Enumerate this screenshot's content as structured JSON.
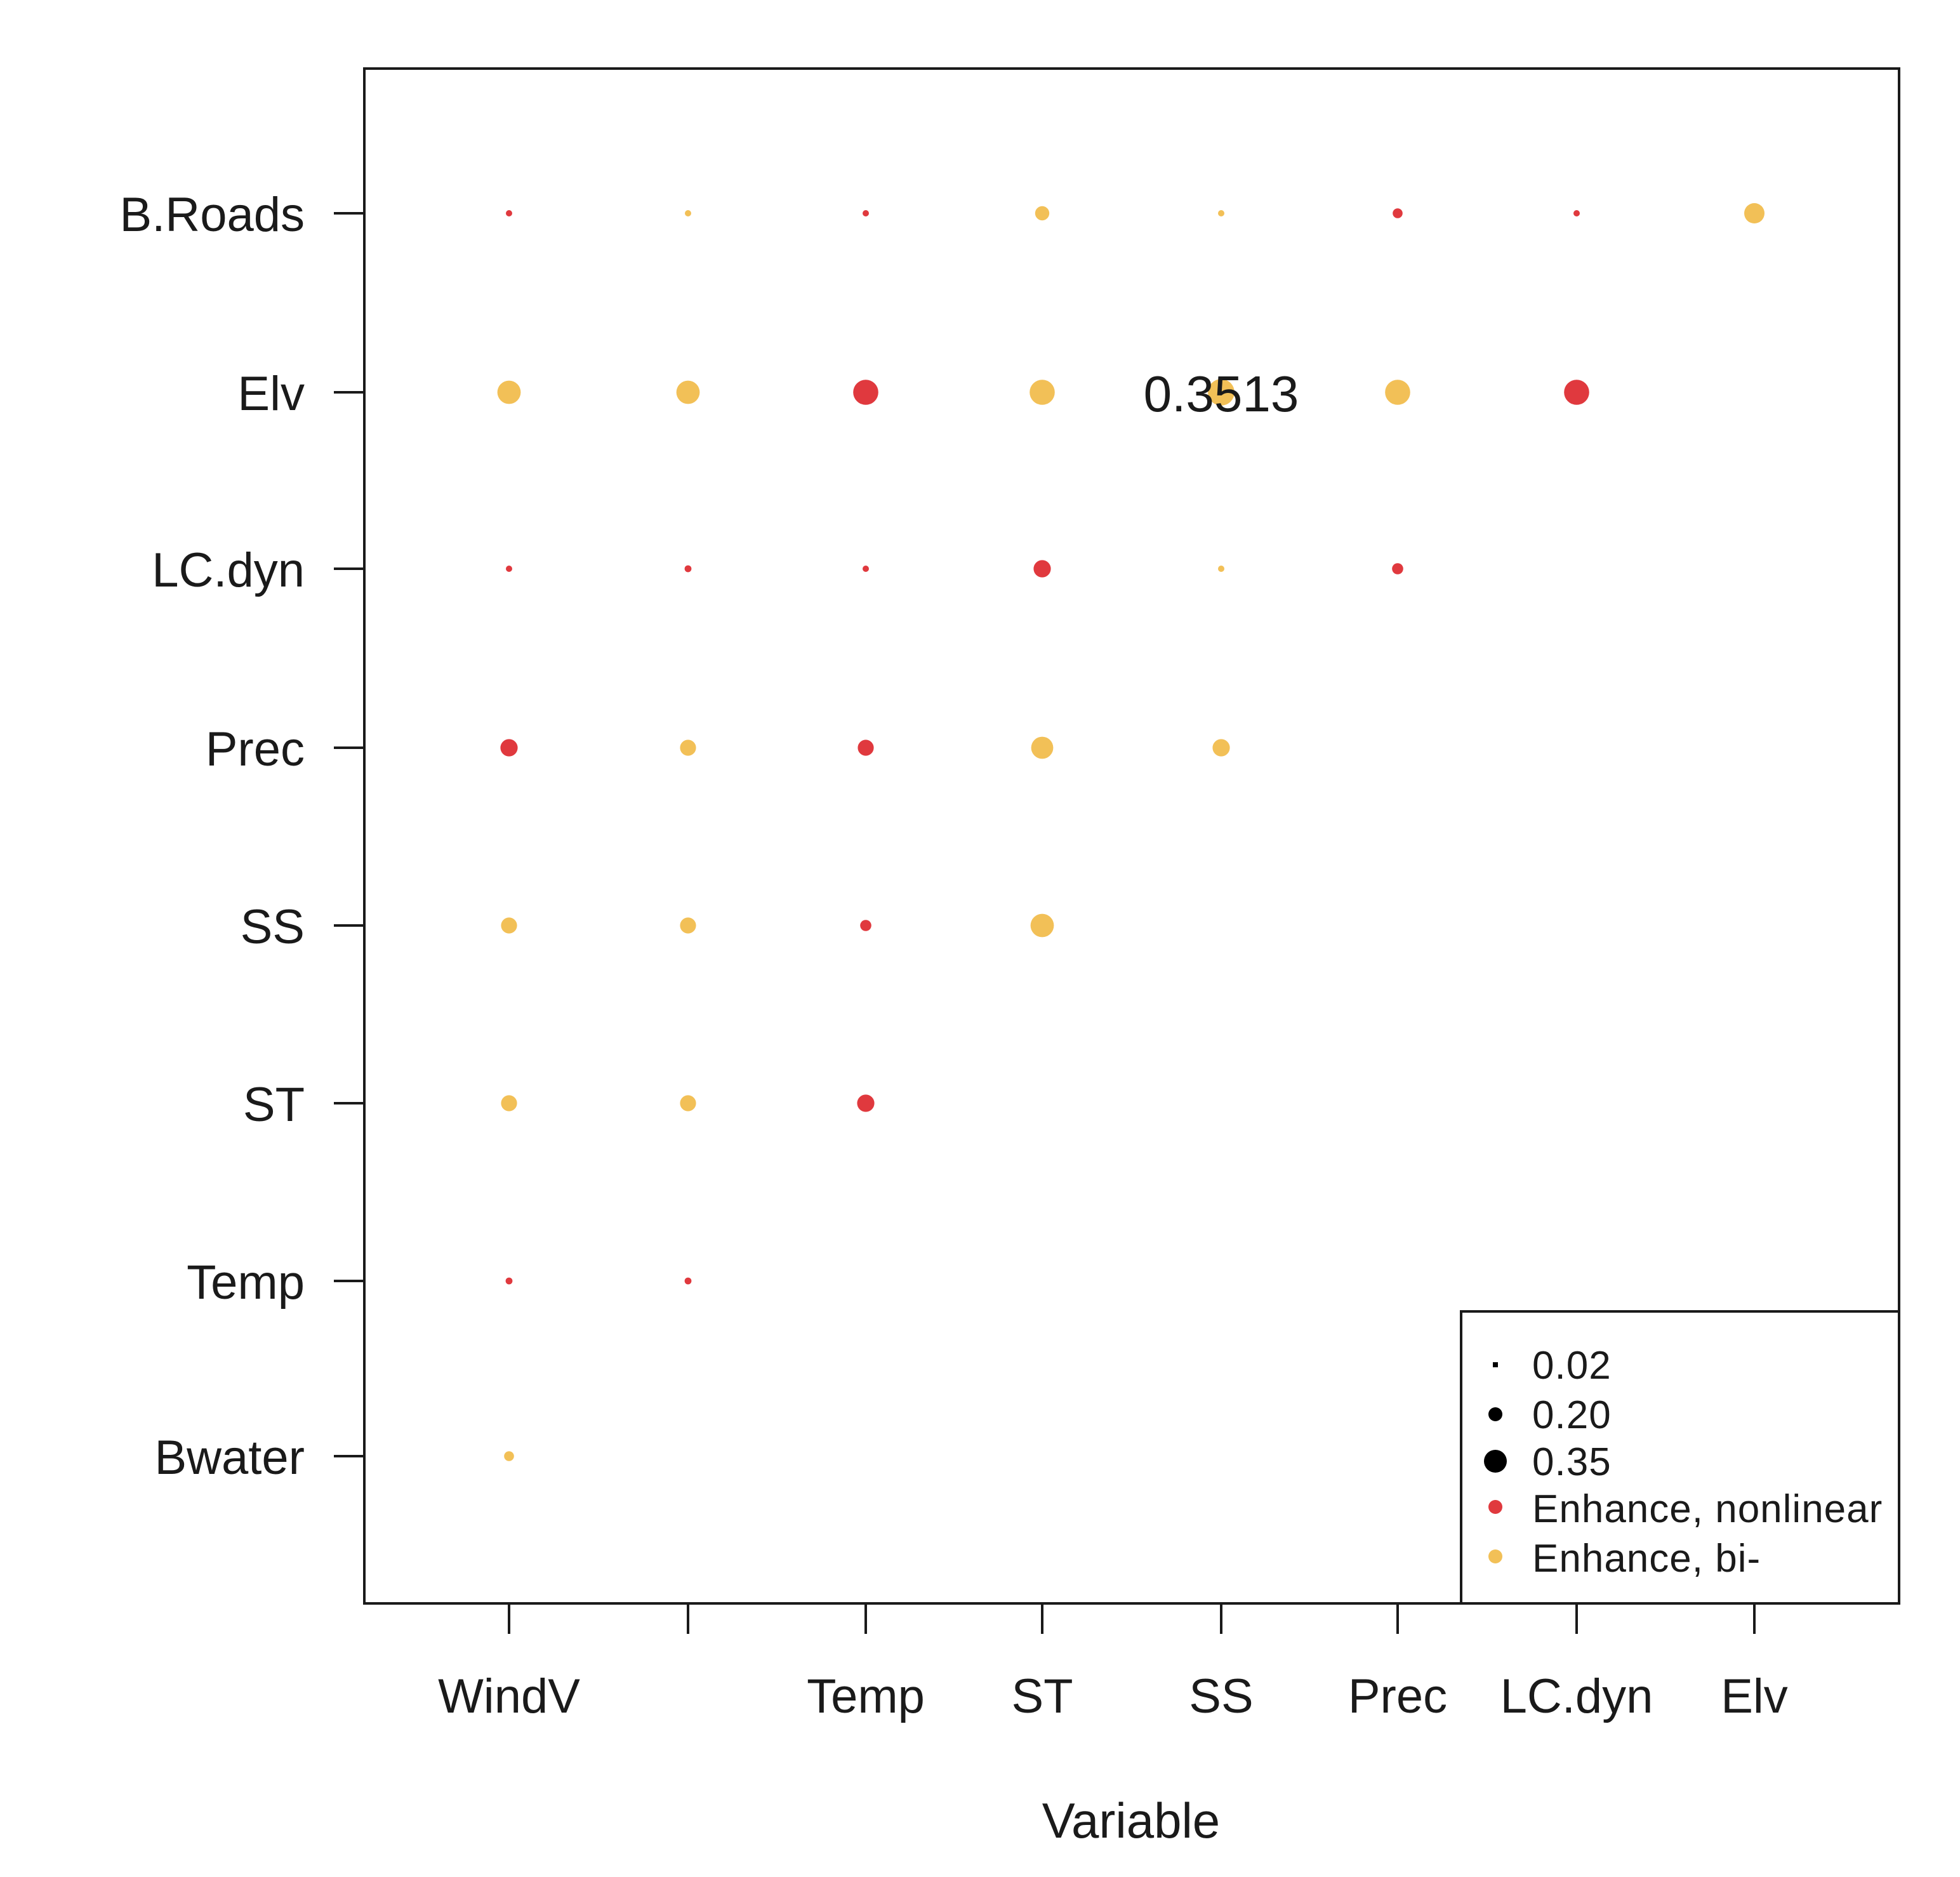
{
  "chart_data": {
    "type": "scatter",
    "title": "",
    "xlabel": "Variable",
    "ylabel": "",
    "x_categories": [
      "WindV",
      "",
      "Temp",
      "ST",
      "SS",
      "Prec",
      "LC.dyn",
      "Elv"
    ],
    "y_categories": [
      "Bwater",
      "Temp",
      "ST",
      "SS",
      "Prec",
      "LC.dyn",
      "Elv",
      "B.Roads"
    ],
    "colors": {
      "Enhance, nonlinear": "#e0393e",
      "Enhance, bi-": "#f2c057"
    },
    "points": [
      {
        "x": "WindV",
        "y": "B.Roads",
        "value": 0.02,
        "type": "Enhance, nonlinear"
      },
      {
        "x": "",
        "y": "B.Roads",
        "value": 0.02,
        "type": "Enhance, bi-"
      },
      {
        "x": "Temp",
        "y": "B.Roads",
        "value": 0.02,
        "type": "Enhance, nonlinear"
      },
      {
        "x": "ST",
        "y": "B.Roads",
        "value": 0.15,
        "type": "Enhance, bi-"
      },
      {
        "x": "SS",
        "y": "B.Roads",
        "value": 0.02,
        "type": "Enhance, bi-"
      },
      {
        "x": "Prec",
        "y": "B.Roads",
        "value": 0.08,
        "type": "Enhance, nonlinear"
      },
      {
        "x": "LC.dyn",
        "y": "B.Roads",
        "value": 0.02,
        "type": "Enhance, nonlinear"
      },
      {
        "x": "Elv",
        "y": "B.Roads",
        "value": 0.25,
        "type": "Enhance, bi-"
      },
      {
        "x": "WindV",
        "y": "Elv",
        "value": 0.3,
        "type": "Enhance, bi-"
      },
      {
        "x": "",
        "y": "Elv",
        "value": 0.3,
        "type": "Enhance, bi-"
      },
      {
        "x": "Temp",
        "y": "Elv",
        "value": 0.33,
        "type": "Enhance, nonlinear"
      },
      {
        "x": "ST",
        "y": "Elv",
        "value": 0.33,
        "type": "Enhance, bi-"
      },
      {
        "x": "SS",
        "y": "Elv",
        "value": 0.3513,
        "type": "Enhance, bi-"
      },
      {
        "x": "Prec",
        "y": "Elv",
        "value": 0.33,
        "type": "Enhance, bi-"
      },
      {
        "x": "LC.dyn",
        "y": "Elv",
        "value": 0.33,
        "type": "Enhance, nonlinear"
      },
      {
        "x": "WindV",
        "y": "LC.dyn",
        "value": 0.02,
        "type": "Enhance, nonlinear"
      },
      {
        "x": "",
        "y": "LC.dyn",
        "value": 0.03,
        "type": "Enhance, nonlinear"
      },
      {
        "x": "Temp",
        "y": "LC.dyn",
        "value": 0.02,
        "type": "Enhance, nonlinear"
      },
      {
        "x": "ST",
        "y": "LC.dyn",
        "value": 0.2,
        "type": "Enhance, nonlinear"
      },
      {
        "x": "SS",
        "y": "LC.dyn",
        "value": 0.02,
        "type": "Enhance, bi-"
      },
      {
        "x": "Prec",
        "y": "LC.dyn",
        "value": 0.1,
        "type": "Enhance, nonlinear"
      },
      {
        "x": "WindV",
        "y": "Prec",
        "value": 0.2,
        "type": "Enhance, nonlinear"
      },
      {
        "x": "",
        "y": "Prec",
        "value": 0.18,
        "type": "Enhance, bi-"
      },
      {
        "x": "Temp",
        "y": "Prec",
        "value": 0.18,
        "type": "Enhance, nonlinear"
      },
      {
        "x": "ST",
        "y": "Prec",
        "value": 0.28,
        "type": "Enhance, bi-"
      },
      {
        "x": "SS",
        "y": "Prec",
        "value": 0.2,
        "type": "Enhance, bi-"
      },
      {
        "x": "WindV",
        "y": "SS",
        "value": 0.18,
        "type": "Enhance, bi-"
      },
      {
        "x": "",
        "y": "SS",
        "value": 0.18,
        "type": "Enhance, bi-"
      },
      {
        "x": "Temp",
        "y": "SS",
        "value": 0.1,
        "type": "Enhance, nonlinear"
      },
      {
        "x": "ST",
        "y": "SS",
        "value": 0.3,
        "type": "Enhance, bi-"
      },
      {
        "x": "WindV",
        "y": "ST",
        "value": 0.18,
        "type": "Enhance, bi-"
      },
      {
        "x": "",
        "y": "ST",
        "value": 0.18,
        "type": "Enhance, bi-"
      },
      {
        "x": "Temp",
        "y": "ST",
        "value": 0.2,
        "type": "Enhance, nonlinear"
      },
      {
        "x": "WindV",
        "y": "Temp",
        "value": 0.03,
        "type": "Enhance, nonlinear"
      },
      {
        "x": "",
        "y": "Temp",
        "value": 0.03,
        "type": "Enhance, nonlinear"
      },
      {
        "x": "WindV",
        "y": "Bwater",
        "value": 0.08,
        "type": "Enhance, bi-"
      }
    ],
    "annotations": [
      {
        "text": "0.3513",
        "x": "SS",
        "y": "Elv"
      }
    ],
    "legend": {
      "position": "bottom-right",
      "size_entries": [
        "0.02",
        "0.20",
        "0.35"
      ],
      "color_entries": [
        "Enhance, nonlinear",
        "Enhance, bi-"
      ]
    },
    "grid": false
  }
}
